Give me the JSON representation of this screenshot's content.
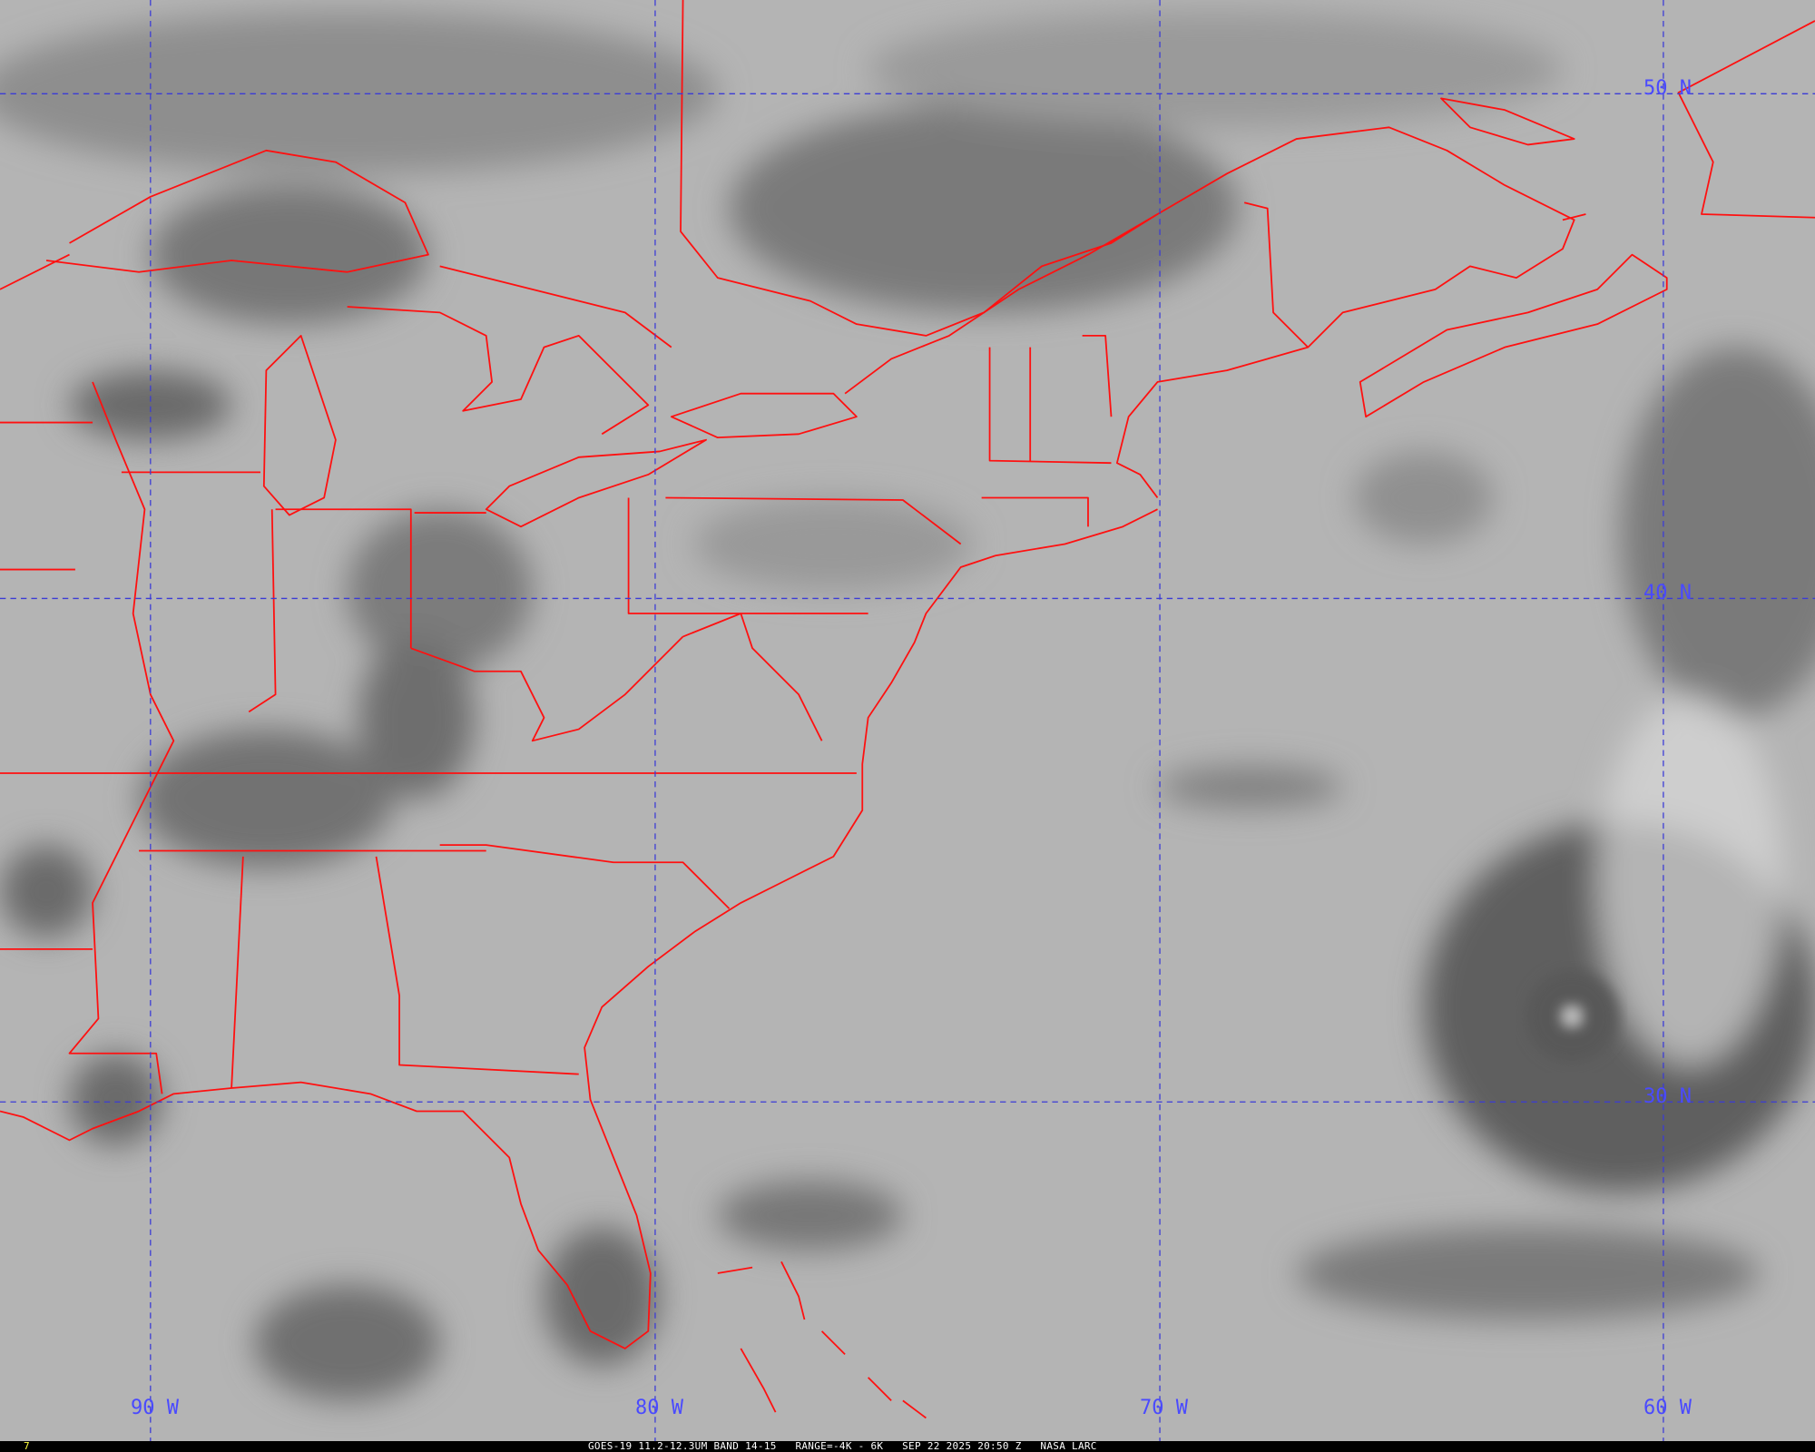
{
  "map": {
    "longitude_labels": [
      "90 W",
      "80 W",
      "70 W",
      "60 W"
    ],
    "latitude_labels": [
      "50 N",
      "40 N",
      "30 N"
    ],
    "colors": {
      "graticule": "#4a4aff",
      "borders": "#ff1010",
      "frame_number": "#ffff40"
    }
  },
  "footer": {
    "frame_number": "7",
    "caption": "GOES-19 11.2-12.3UM BAND 14-15   RANGE=-4K - 6K   SEP 22 2025 20:50 Z   NASA LARC"
  }
}
